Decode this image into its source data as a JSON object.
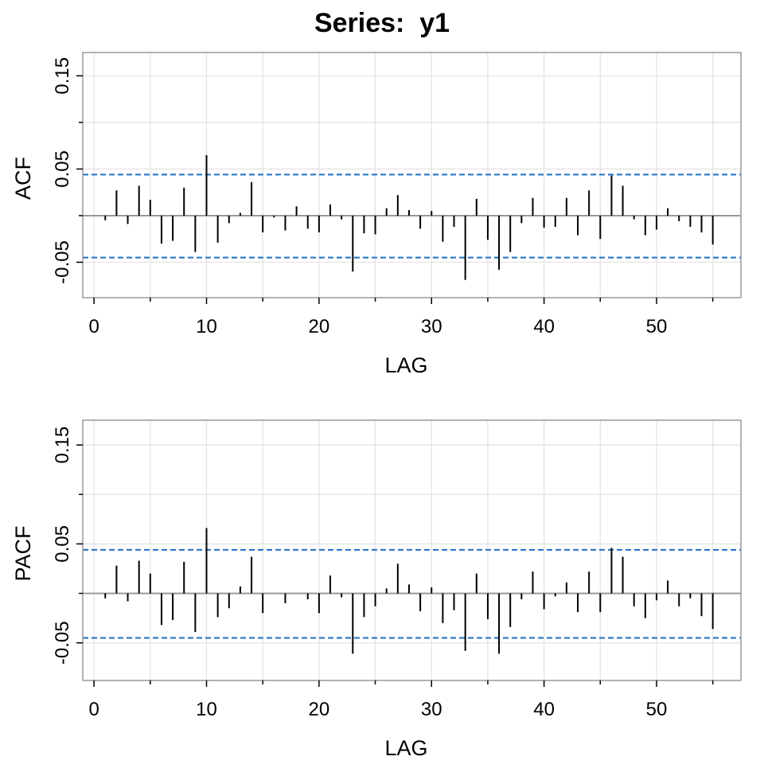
{
  "title": "Series:  y1",
  "colors": {
    "background": "#ffffff",
    "grid": "#e3e3e3",
    "frame": "#999999",
    "zero_line": "#999999",
    "bar": "#000000",
    "bounds": "#1f6fc5"
  },
  "chart_data": [
    {
      "type": "bar",
      "panel": "acf",
      "xlabel": "LAG",
      "ylabel": "ACF",
      "xlim": [
        -1,
        57.5
      ],
      "ylim": [
        -0.088,
        0.175
      ],
      "xticks": [
        0,
        10,
        20,
        30,
        40,
        50
      ],
      "xtick_labels": [
        "0",
        "10",
        "20",
        "30",
        "40",
        "50"
      ],
      "xminor_ticks": [
        5,
        15,
        25,
        35,
        45,
        55
      ],
      "yticks": [
        -0.05,
        0.05,
        0.15
      ],
      "ytick_labels": [
        "-0.05",
        "0.05",
        "0.15"
      ],
      "yminor_ticks": [
        0,
        0.1
      ],
      "grid": true,
      "confidence_bounds": [
        0.044,
        -0.045
      ],
      "x": [
        1,
        2,
        3,
        4,
        5,
        6,
        7,
        8,
        9,
        10,
        11,
        12,
        13,
        14,
        15,
        16,
        17,
        18,
        19,
        20,
        21,
        22,
        23,
        24,
        25,
        26,
        27,
        28,
        29,
        30,
        31,
        32,
        33,
        34,
        35,
        36,
        37,
        38,
        39,
        40,
        41,
        42,
        43,
        44,
        45,
        46,
        47,
        48,
        49,
        50,
        51,
        52,
        53,
        54,
        55
      ],
      "values": [
        -0.005,
        0.027,
        -0.009,
        0.032,
        0.017,
        -0.03,
        -0.027,
        0.03,
        -0.039,
        0.065,
        -0.029,
        -0.008,
        0.003,
        0.036,
        -0.018,
        -0.002,
        -0.016,
        0.01,
        -0.014,
        -0.018,
        0.012,
        -0.004,
        -0.06,
        -0.019,
        -0.02,
        0.008,
        0.022,
        0.006,
        -0.014,
        0.005,
        -0.028,
        -0.012,
        -0.069,
        0.018,
        -0.026,
        -0.058,
        -0.039,
        -0.008,
        0.019,
        -0.013,
        -0.012,
        0.019,
        -0.021,
        0.027,
        -0.025,
        0.043,
        0.032,
        -0.004,
        -0.021,
        -0.015,
        0.008,
        -0.006,
        -0.012,
        -0.018,
        -0.031
      ]
    },
    {
      "type": "bar",
      "panel": "pacf",
      "xlabel": "LAG",
      "ylabel": "PACF",
      "xlim": [
        -1,
        57.5
      ],
      "ylim": [
        -0.088,
        0.175
      ],
      "xticks": [
        0,
        10,
        20,
        30,
        40,
        50
      ],
      "xtick_labels": [
        "0",
        "10",
        "20",
        "30",
        "40",
        "50"
      ],
      "xminor_ticks": [
        5,
        15,
        25,
        35,
        45,
        55
      ],
      "yticks": [
        -0.05,
        0.05,
        0.15
      ],
      "ytick_labels": [
        "-0.05",
        "0.05",
        "0.15"
      ],
      "yminor_ticks": [
        0,
        0.1
      ],
      "grid": true,
      "confidence_bounds": [
        0.044,
        -0.045
      ],
      "x": [
        1,
        2,
        3,
        4,
        5,
        6,
        7,
        8,
        9,
        10,
        11,
        12,
        13,
        14,
        15,
        16,
        17,
        18,
        19,
        20,
        21,
        22,
        23,
        24,
        25,
        26,
        27,
        28,
        29,
        30,
        31,
        32,
        33,
        34,
        35,
        36,
        37,
        38,
        39,
        40,
        41,
        42,
        43,
        44,
        45,
        46,
        47,
        48,
        49,
        50,
        51,
        52,
        53,
        54,
        55
      ],
      "values": [
        -0.005,
        0.028,
        -0.008,
        0.033,
        0.02,
        -0.032,
        -0.027,
        0.032,
        -0.039,
        0.066,
        -0.024,
        -0.015,
        0.007,
        0.037,
        -0.02,
        0,
        -0.01,
        0,
        -0.006,
        -0.02,
        0.018,
        -0.004,
        -0.061,
        -0.024,
        -0.013,
        0.005,
        0.03,
        0.009,
        -0.018,
        0.006,
        -0.03,
        -0.017,
        -0.058,
        0.02,
        -0.026,
        -0.061,
        -0.034,
        -0.006,
        0.022,
        -0.016,
        -0.003,
        0.011,
        -0.019,
        0.022,
        -0.019,
        0.046,
        0.037,
        -0.013,
        -0.025,
        -0.007,
        0.013,
        -0.013,
        -0.005,
        -0.023,
        -0.036
      ]
    }
  ]
}
